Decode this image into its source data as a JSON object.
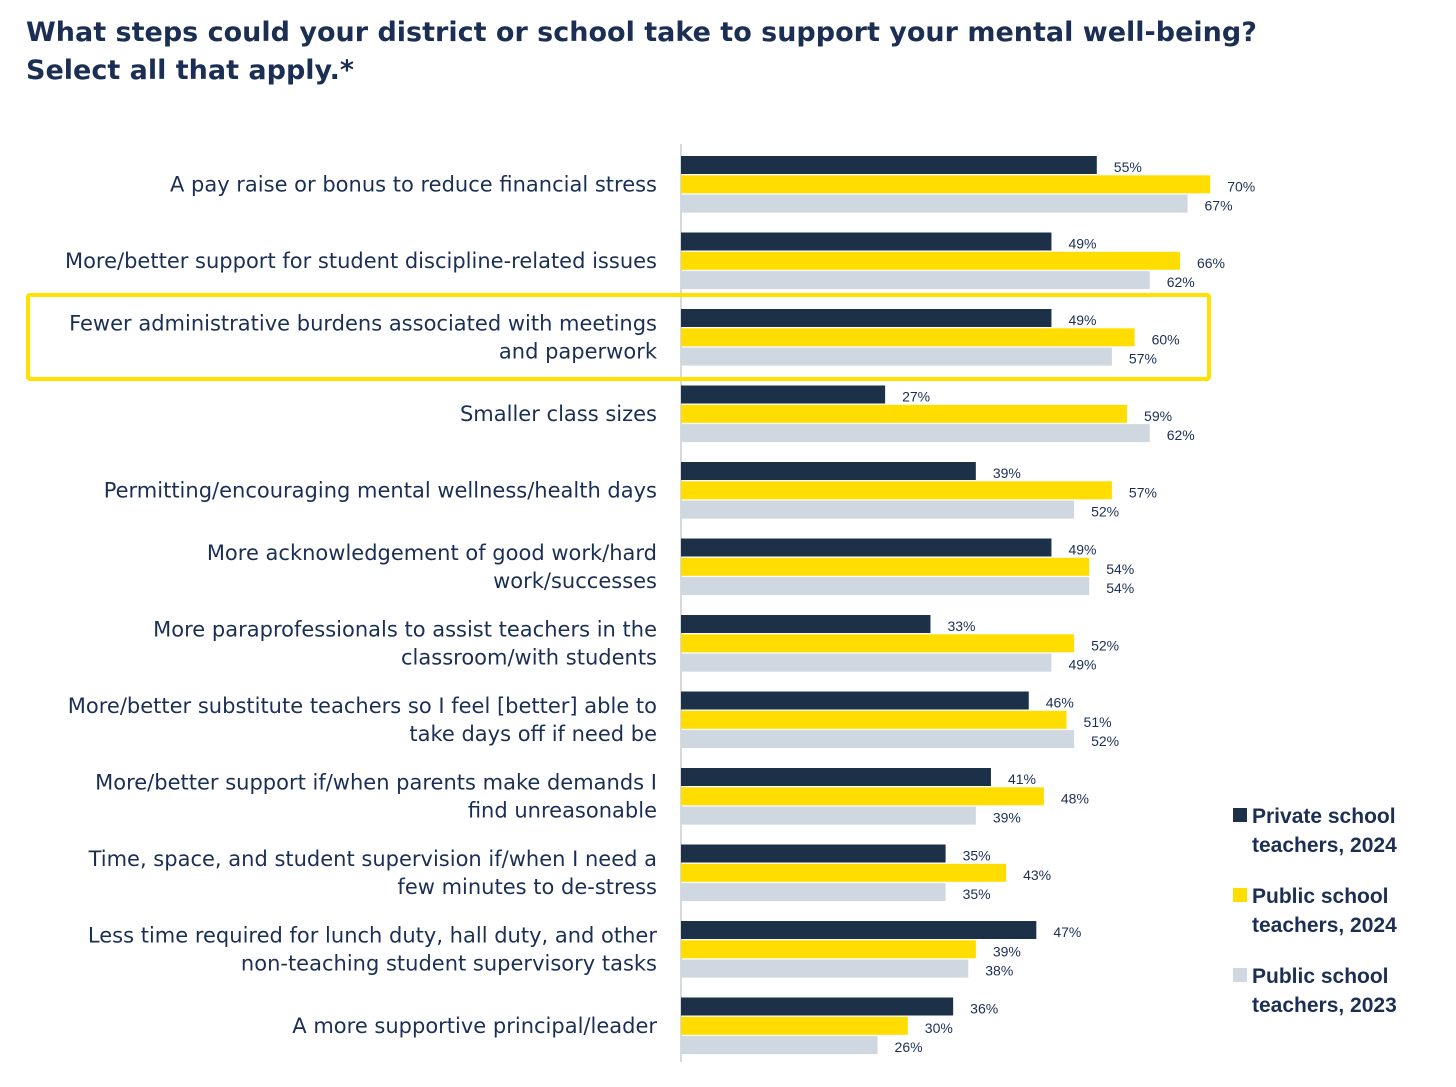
{
  "chart_data": {
    "type": "bar",
    "orientation": "horizontal",
    "title": "What steps could your district or school take to support your mental well-being?",
    "subtitle": "Select all that apply.*",
    "xlim": [
      0,
      100
    ],
    "grid": false,
    "legend_position": "bottom-right",
    "highlighted_category_index": 2,
    "highlight_color": "#ffe100",
    "categories": [
      [
        "A pay raise or bonus to reduce financial stress"
      ],
      [
        "More/better support for student discipline-related issues"
      ],
      [
        "Fewer administrative burdens associated with meetings",
        "and paperwork"
      ],
      [
        "Smaller class sizes"
      ],
      [
        "Permitting/encouraging mental wellness/health days"
      ],
      [
        "More acknowledgement of good work/hard",
        "work/successes"
      ],
      [
        "More paraprofessionals to assist teachers in the",
        "classroom/with students"
      ],
      [
        "More/better substitute teachers so I feel [better] able to",
        "take days off if need be"
      ],
      [
        "More/better support if/when parents make demands I",
        "find unreasonable"
      ],
      [
        "Time, space, and student supervision if/when I need a",
        "few minutes to de-stress"
      ],
      [
        "Less time required for lunch duty, hall duty, and other",
        "non-teaching student supervisory tasks"
      ],
      [
        "A more supportive principal/leader"
      ]
    ],
    "series": [
      {
        "legend": [
          "Private school",
          "teachers, 2024"
        ],
        "color": "#1c3048",
        "values": [
          55,
          49,
          49,
          27,
          39,
          49,
          33,
          46,
          41,
          35,
          47,
          36
        ]
      },
      {
        "legend": [
          "Public school",
          "teachers, 2024"
        ],
        "color": "#ffdd00",
        "values": [
          70,
          66,
          60,
          59,
          57,
          54,
          52,
          51,
          48,
          43,
          39,
          30
        ]
      },
      {
        "legend": [
          "Public school",
          "teachers, 2023"
        ],
        "color": "#cfd7e0",
        "values": [
          67,
          62,
          57,
          62,
          52,
          54,
          49,
          52,
          39,
          35,
          38,
          26
        ]
      }
    ]
  }
}
